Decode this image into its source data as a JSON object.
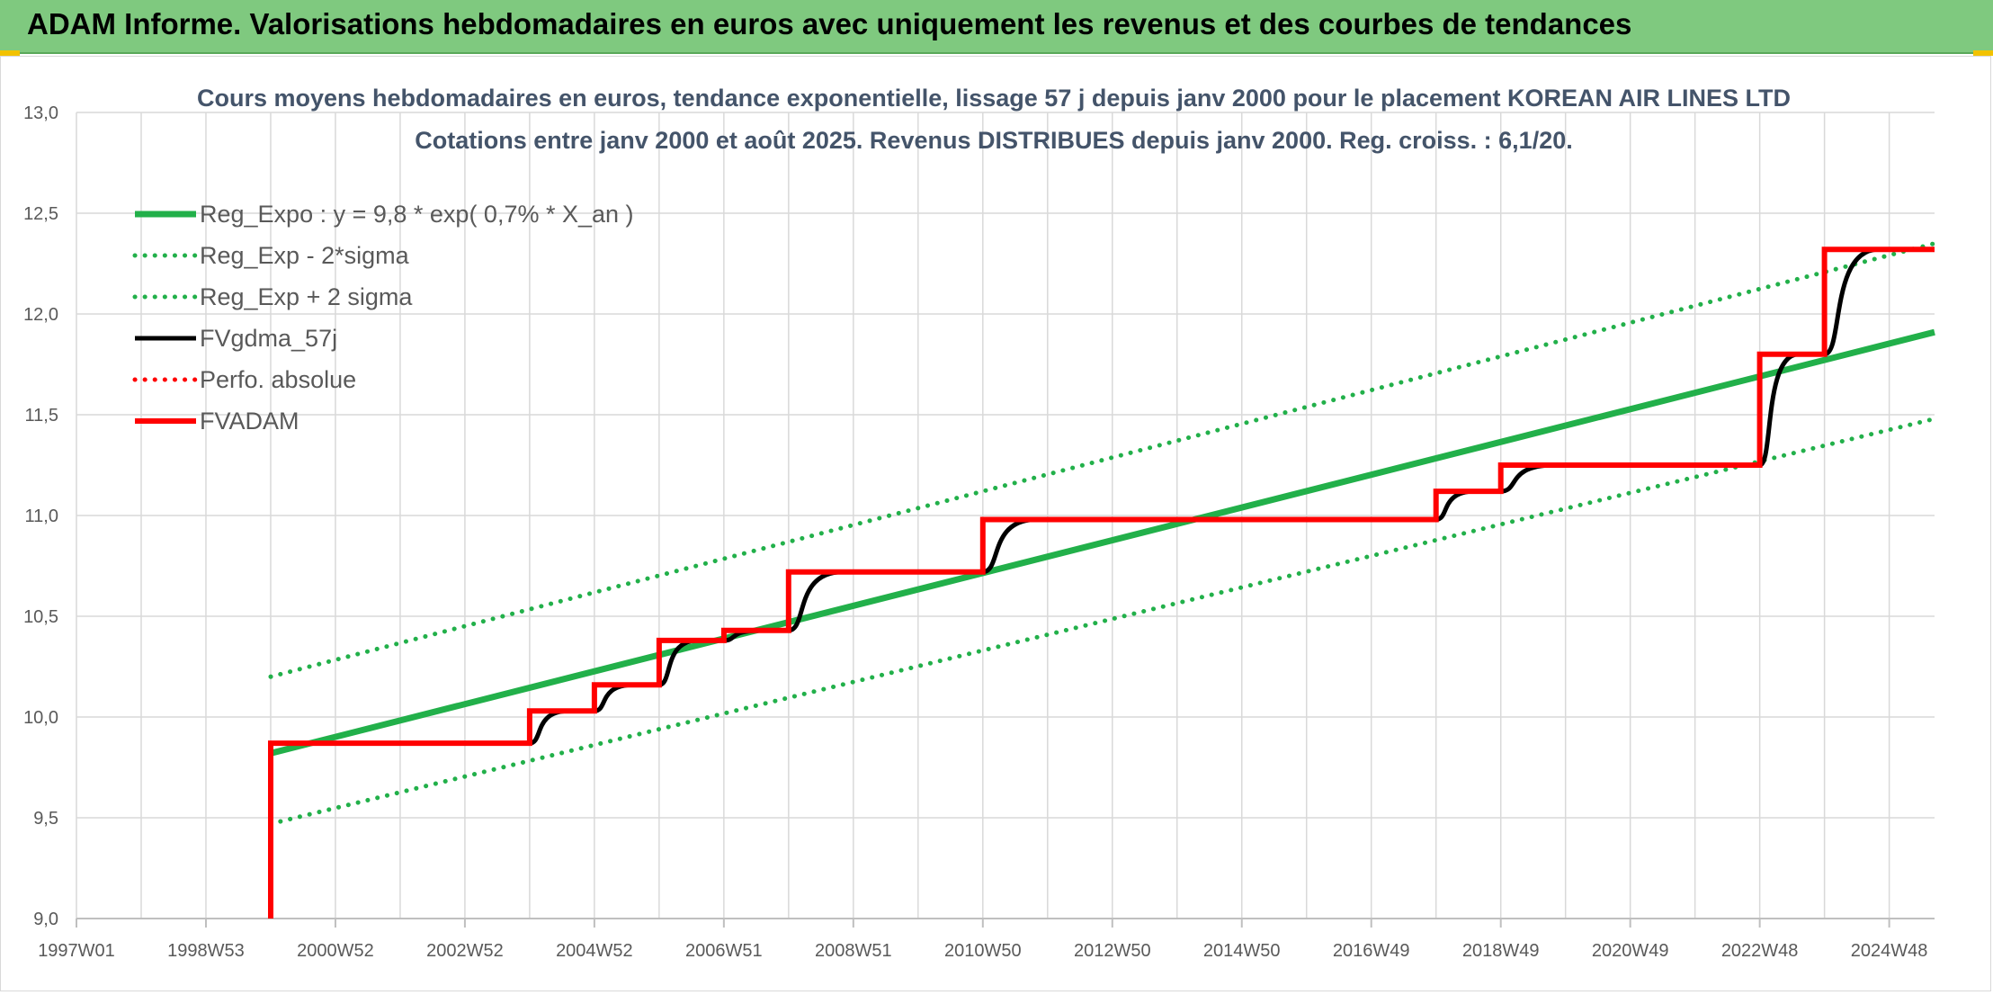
{
  "header": {
    "title": "ADAM Informe. Valorisations hebdomadaires en euros avec uniquement les revenus et des courbes de tendances"
  },
  "colors": {
    "banner": "#7fc97f",
    "reg_expo": "#22b04a",
    "fvgdma": "#000000",
    "fvadam": "#ff0000",
    "perfo": "#ff0000",
    "grid": "#d9d9d9",
    "title_text": "#44546a",
    "axis_text": "#595959"
  },
  "chart_data": {
    "type": "line",
    "title": "Cours moyens hebdomadaires en euros, tendance exponentielle, lissage 57 j depuis janv 2000 pour le placement KOREAN AIR LINES LTD",
    "subtitle": "Cotations entre janv 2000 et août 2025. Revenus DISTRIBUES depuis janv 2000. Reg. croiss. : 6,1/20.",
    "xlabel": "",
    "ylabel": "",
    "x_range": [
      1997.0,
      2025.7
    ],
    "ylim": [
      9.0,
      13.0
    ],
    "y_ticks": [
      "9,0",
      "9,5",
      "10,0",
      "10,5",
      "11,0",
      "11,5",
      "12,0",
      "12,5",
      "13,0"
    ],
    "y_tick_values": [
      9.0,
      9.5,
      10.0,
      10.5,
      11.0,
      11.5,
      12.0,
      12.5,
      13.0
    ],
    "x_ticks": [
      "1997W01",
      "1998W53",
      "2000W52",
      "2002W52",
      "2004W52",
      "2006W51",
      "2008W51",
      "2010W50",
      "2012W50",
      "2014W50",
      "2016W49",
      "2018W49",
      "2020W49",
      "2022W48",
      "2024W48"
    ],
    "x_tick_values": [
      1997.0,
      1999.0,
      2001.0,
      2003.0,
      2005.0,
      2007.0,
      2009.0,
      2011.0,
      2013.0,
      2015.0,
      2017.0,
      2019.0,
      2021.0,
      2023.0,
      2025.0
    ],
    "grid": true,
    "legend_position": "top-left",
    "series": [
      {
        "name": "Reg_Expo : y = 9,8 * exp( 0,7% *  X_an )",
        "style": "solid-thick",
        "color": "#22b04a",
        "x": [
          2000.0,
          2025.7
        ],
        "y": [
          9.82,
          11.91
        ]
      },
      {
        "name": "Reg_Exp - 2*sigma",
        "style": "dotted",
        "color": "#22b04a",
        "x": [
          2000.0,
          2025.7
        ],
        "y": [
          9.47,
          11.48
        ]
      },
      {
        "name": "Reg_Exp + 2 sigma",
        "style": "dotted",
        "color": "#22b04a",
        "x": [
          2000.0,
          2025.7
        ],
        "y": [
          10.2,
          12.35
        ]
      },
      {
        "name": "FVgdma_57j",
        "style": "smooth-step",
        "color": "#000000",
        "x": [
          2000.0,
          2003.0,
          2004.0,
          2005.0,
          2006.0,
          2007.0,
          2008.0,
          2011.0,
          2018.0,
          2019.0,
          2023.0,
          2024.0,
          2025.7
        ],
        "y": [
          9.87,
          9.87,
          10.03,
          10.16,
          10.38,
          10.43,
          10.72,
          10.98,
          11.12,
          11.25,
          11.8,
          12.32,
          12.32
        ]
      },
      {
        "name": "Perfo. absolue",
        "style": "dotted",
        "color": "#ff0000",
        "x": [
          2000.0,
          2025.7
        ],
        "y": [
          9.0,
          9.0
        ]
      },
      {
        "name": "FVADAM",
        "style": "step",
        "color": "#ff0000",
        "start": [
          2000.0,
          9.0
        ],
        "x": [
          2000.0,
          2003.0,
          2004.0,
          2005.0,
          2006.0,
          2007.0,
          2008.0,
          2011.0,
          2018.0,
          2019.0,
          2023.0,
          2024.0,
          2025.7
        ],
        "y": [
          9.87,
          9.87,
          10.03,
          10.16,
          10.38,
          10.43,
          10.72,
          10.98,
          11.12,
          11.25,
          11.8,
          12.32,
          12.32
        ]
      }
    ]
  }
}
